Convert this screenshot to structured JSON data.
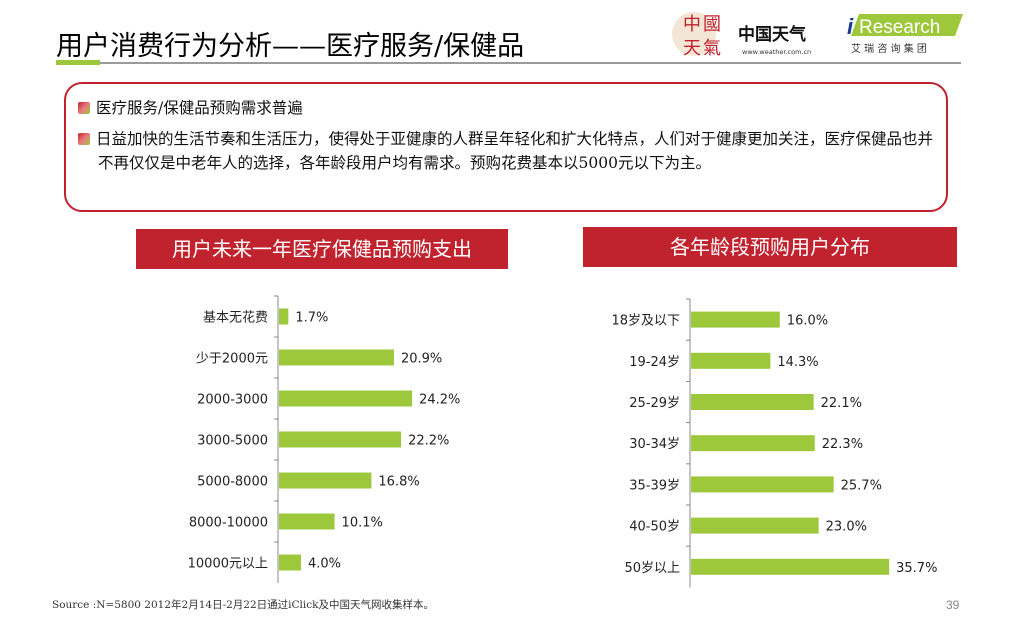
{
  "page": {
    "title": "用户消费行为分析——医疗服务/保健品",
    "page_number": "39"
  },
  "logos": {
    "cw_seal_chars": "中國天氣",
    "cw_name": "中国天气",
    "cw_url": "www.weather.com.cn",
    "ir_prefix": "i",
    "ir_name": "Research",
    "ir_sub": "艾 瑞 咨 询 集 团"
  },
  "summary": {
    "bullets": [
      "医疗服务/保健品预购需求普遍",
      "日益加快的生活节奏和生活压力，使得处于亚健康的人群呈年轻化和扩大化特点，人们对于健康更加关注，医疗保健品也并不再仅仅是中老年人的选择，各年龄段用户均有需求。预购花费基本以5000元以下为主。"
    ]
  },
  "panels": {
    "left_header": "用户未来一年医疗保健品预购支出",
    "right_header": "各年龄段预购用户分布"
  },
  "footer": {
    "source": "Source :N=5800      2012年2月14日-2月22日通过iClick及中国天气网收集样本。"
  },
  "colors": {
    "accent_red": "#c0222e",
    "bar_green": "#9dc83b",
    "axis": "#888888"
  },
  "chart_data": [
    {
      "type": "bar",
      "orientation": "horizontal",
      "title": "用户未来一年医疗保健品预购支出",
      "categories": [
        "基本无花费",
        "少于2000元",
        "2000-3000",
        "3000-5000",
        "5000-8000",
        "8000-10000",
        "10000元以上"
      ],
      "values": [
        1.7,
        20.9,
        24.2,
        22.2,
        16.8,
        10.1,
        4.0
      ],
      "labels": [
        "1.7%",
        "20.9%",
        "24.2%",
        "22.2%",
        "16.8%",
        "10.1%",
        "4.0%"
      ],
      "unit": "%",
      "xlim": [
        0,
        40
      ]
    },
    {
      "type": "bar",
      "orientation": "horizontal",
      "title": "各年龄段预购用户分布",
      "categories": [
        "18岁及以下",
        "19-24岁",
        "25-29岁",
        "30-34岁",
        "35-39岁",
        "40-50岁",
        "50岁以上"
      ],
      "values": [
        16.0,
        14.3,
        22.1,
        22.3,
        25.7,
        23.0,
        35.7
      ],
      "labels": [
        "16.0%",
        "14.3%",
        "22.1%",
        "22.3%",
        "25.7%",
        "23.0%",
        "35.7%"
      ],
      "unit": "%",
      "xlim": [
        0,
        36
      ]
    }
  ]
}
